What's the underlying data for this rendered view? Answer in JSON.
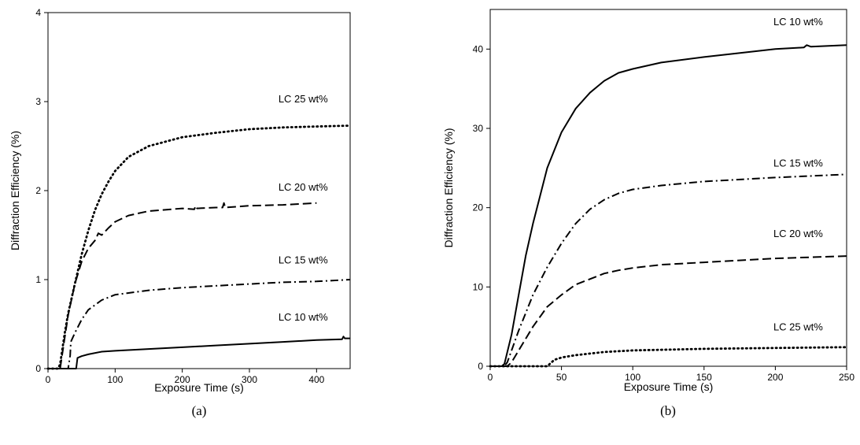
{
  "chart_data": [
    {
      "type": "line",
      "panel_label": "(a)",
      "xlabel": "Exposure Time (s)",
      "ylabel": "Diffraction Efficiency (%)",
      "xlim": [
        0,
        450
      ],
      "ylim": [
        0,
        4
      ],
      "xticks": [
        "0",
        "100",
        "200",
        "300",
        "400"
      ],
      "yticks": [
        "0",
        "1",
        "2",
        "3",
        "4"
      ],
      "grid": false,
      "series": [
        {
          "name": "LC 25 wt%",
          "style": "dotted",
          "x": [
            0,
            15,
            18,
            20,
            25,
            30,
            40,
            50,
            60,
            70,
            80,
            90,
            100,
            120,
            150,
            200,
            250,
            300,
            350,
            400,
            450
          ],
          "y": [
            0,
            0,
            0.05,
            0.15,
            0.4,
            0.62,
            0.95,
            1.28,
            1.55,
            1.78,
            1.96,
            2.1,
            2.22,
            2.38,
            2.5,
            2.6,
            2.65,
            2.69,
            2.71,
            2.72,
            2.73
          ]
        },
        {
          "name": "LC 20 wt%",
          "style": "dashed",
          "x": [
            0,
            18,
            20,
            25,
            30,
            40,
            50,
            60,
            70,
            75,
            80,
            90,
            100,
            120,
            150,
            200,
            218,
            220,
            222,
            250,
            260,
            262,
            264,
            300,
            350,
            400
          ],
          "y": [
            0,
            0,
            0.1,
            0.35,
            0.6,
            0.95,
            1.2,
            1.35,
            1.44,
            1.52,
            1.5,
            1.58,
            1.65,
            1.72,
            1.77,
            1.8,
            1.79,
            1.83,
            1.8,
            1.81,
            1.81,
            1.86,
            1.81,
            1.83,
            1.84,
            1.86
          ]
        },
        {
          "name": "LC 15 wt%",
          "style": "dashdot",
          "x": [
            0,
            30,
            33,
            34,
            40,
            50,
            60,
            80,
            100,
            150,
            200,
            250,
            300,
            350,
            400,
            450
          ],
          "y": [
            0,
            0,
            0.15,
            0.3,
            0.4,
            0.55,
            0.66,
            0.77,
            0.83,
            0.88,
            0.91,
            0.93,
            0.95,
            0.97,
            0.98,
            1.0
          ]
        },
        {
          "name": "LC 10 wt%",
          "style": "solid",
          "x": [
            0,
            42,
            44,
            50,
            60,
            80,
            100,
            150,
            200,
            250,
            300,
            350,
            400,
            438,
            440,
            442,
            450
          ],
          "y": [
            0,
            0,
            0.12,
            0.14,
            0.16,
            0.19,
            0.2,
            0.22,
            0.24,
            0.26,
            0.28,
            0.3,
            0.32,
            0.33,
            0.36,
            0.34,
            0.34
          ]
        }
      ],
      "annotations": [
        {
          "text": "LC 25 wt%",
          "x": 380,
          "y": 2.99
        },
        {
          "text": "LC 20 wt%",
          "x": 380,
          "y": 2.0
        },
        {
          "text": "LC 15 wt%",
          "x": 380,
          "y": 1.18
        },
        {
          "text": "LC 10 wt%",
          "x": 380,
          "y": 0.54
        }
      ]
    },
    {
      "type": "line",
      "panel_label": "(b)",
      "xlabel": "Exposure Time (s)",
      "ylabel": "Diffraction Efficiency (%)",
      "xlim": [
        0,
        250
      ],
      "ylim": [
        0,
        45
      ],
      "xticks": [
        "0",
        "50",
        "100",
        "150",
        "200",
        "250"
      ],
      "yticks": [
        "0",
        "10",
        "20",
        "30",
        "40"
      ],
      "grid": false,
      "series": [
        {
          "name": "LC 10 wt%",
          "style": "solid",
          "x": [
            0,
            8,
            10,
            15,
            20,
            25,
            30,
            40,
            50,
            60,
            70,
            80,
            90,
            100,
            120,
            150,
            200,
            220,
            222,
            225,
            250
          ],
          "y": [
            0,
            0,
            0.3,
            4,
            9,
            14,
            18,
            25,
            29.5,
            32.5,
            34.5,
            36,
            37,
            37.5,
            38.3,
            39,
            40,
            40.2,
            40.5,
            40.3,
            40.5
          ]
        },
        {
          "name": "LC 15 wt%",
          "style": "dashdot",
          "x": [
            0,
            10,
            12,
            15,
            20,
            30,
            40,
            50,
            60,
            70,
            80,
            90,
            100,
            120,
            150,
            200,
            250
          ],
          "y": [
            0,
            0,
            0.5,
            2,
            4.5,
            9,
            12.5,
            15.5,
            18,
            19.8,
            21,
            21.8,
            22.3,
            22.8,
            23.3,
            23.8,
            24.2
          ]
        },
        {
          "name": "LC 20 wt%",
          "style": "dashed",
          "x": [
            0,
            12,
            15,
            20,
            30,
            40,
            50,
            60,
            70,
            80,
            90,
            100,
            120,
            150,
            200,
            250
          ],
          "y": [
            0,
            0,
            0.5,
            2,
            5,
            7.5,
            9,
            10.3,
            11,
            11.7,
            12.1,
            12.4,
            12.8,
            13.1,
            13.6,
            13.9
          ]
        },
        {
          "name": "LC 25 wt%",
          "style": "dotted",
          "x": [
            0,
            40,
            45,
            50,
            60,
            70,
            80,
            100,
            150,
            200,
            250
          ],
          "y": [
            0,
            0,
            0.8,
            1.1,
            1.4,
            1.6,
            1.8,
            2.0,
            2.2,
            2.3,
            2.4
          ]
        }
      ],
      "annotations": [
        {
          "text": "LC 10 wt%",
          "x": 216,
          "y": 43.0
        },
        {
          "text": "LC 15 wt%",
          "x": 216,
          "y": 25.2
        },
        {
          "text": "LC 20 wt%",
          "x": 216,
          "y": 16.3
        },
        {
          "text": "LC 25 wt%",
          "x": 216,
          "y": 4.5
        }
      ]
    }
  ]
}
